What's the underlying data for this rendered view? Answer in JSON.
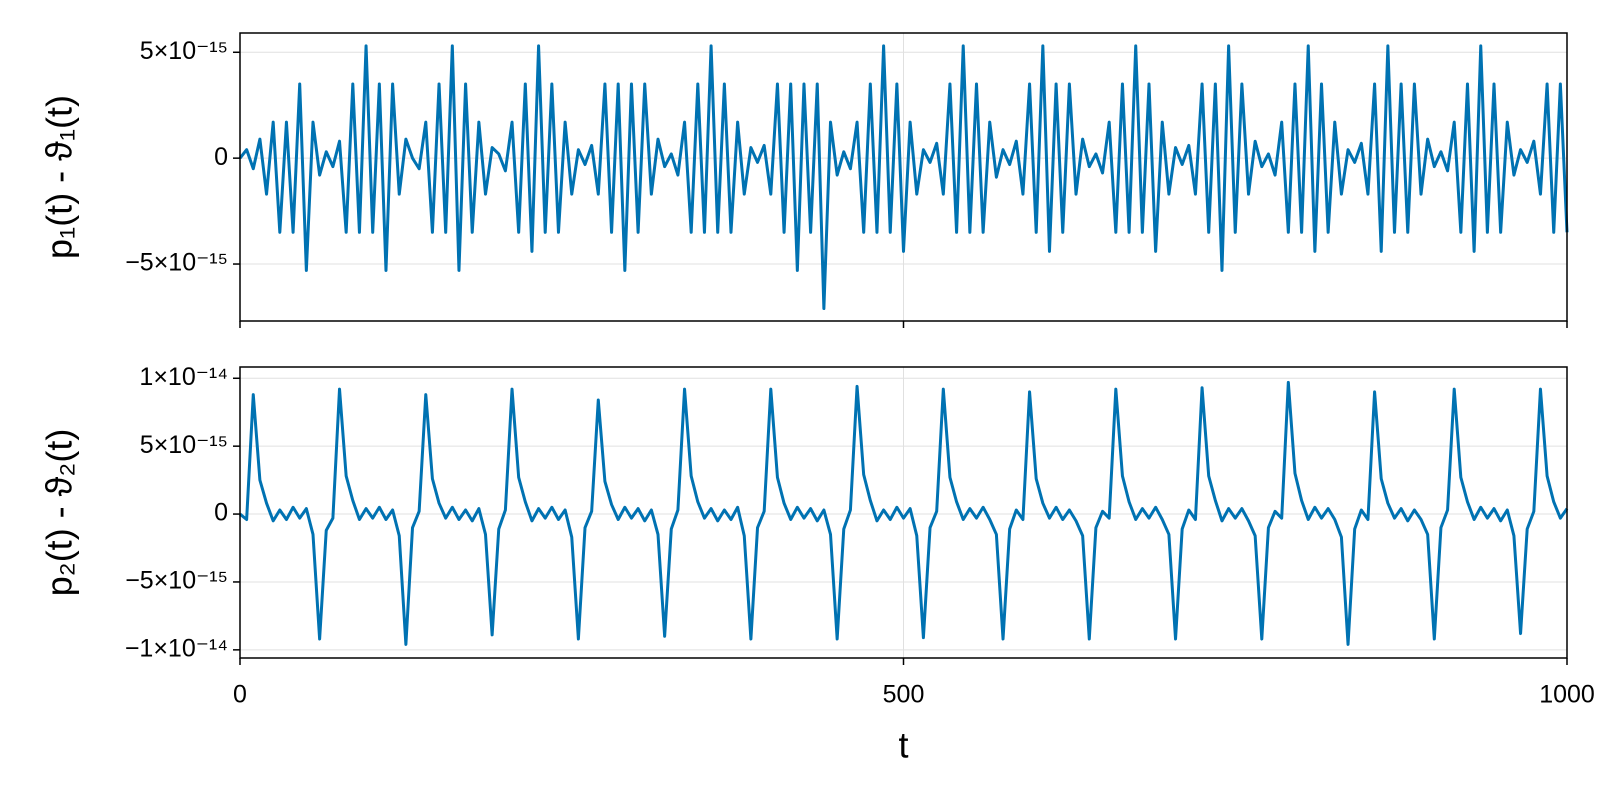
{
  "chart_data": [
    {
      "type": "line",
      "ylabel": "p₁(t) - ϑ₁(t)",
      "x": [
        0,
        5,
        10,
        15,
        20,
        25,
        30,
        35,
        40,
        45,
        50,
        55,
        60,
        65,
        70,
        75,
        80,
        85,
        90,
        95,
        100,
        105,
        110,
        115,
        120,
        125,
        130,
        135,
        140,
        145,
        150,
        155,
        160,
        165,
        170,
        175,
        180,
        185,
        190,
        195,
        200,
        205,
        210,
        215,
        220,
        225,
        230,
        235,
        240,
        245,
        250,
        255,
        260,
        265,
        270,
        275,
        280,
        285,
        290,
        295,
        300,
        305,
        310,
        315,
        320,
        325,
        330,
        335,
        340,
        345,
        350,
        355,
        360,
        365,
        370,
        375,
        380,
        385,
        390,
        395,
        400,
        405,
        410,
        415,
        420,
        425,
        430,
        435,
        440,
        445,
        450,
        455,
        460,
        465,
        470,
        475,
        480,
        485,
        490,
        495,
        500,
        505,
        510,
        515,
        520,
        525,
        530,
        535,
        540,
        545,
        550,
        555,
        560,
        565,
        570,
        575,
        580,
        585,
        590,
        595,
        600,
        605,
        610,
        615,
        620,
        625,
        630,
        635,
        640,
        645,
        650,
        655,
        660,
        665,
        670,
        675,
        680,
        685,
        690,
        695,
        700,
        705,
        710,
        715,
        720,
        725,
        730,
        735,
        740,
        745,
        750,
        755,
        760,
        765,
        770,
        775,
        780,
        785,
        790,
        795,
        800,
        805,
        810,
        815,
        820,
        825,
        830,
        835,
        840,
        845,
        850,
        855,
        860,
        865,
        870,
        875,
        880,
        885,
        890,
        895,
        900,
        905,
        910,
        915,
        920,
        925,
        930,
        935,
        940,
        945,
        950,
        955,
        960,
        965,
        970,
        975,
        980,
        985,
        990,
        995,
        1000
      ],
      "series": [
        {
          "color": "#0072b2",
          "values": [
            0,
            4e-16,
            -5e-16,
            9e-16,
            -1.7e-15,
            1.7e-15,
            -3.5e-15,
            1.7e-15,
            -3.5e-15,
            3.5e-15,
            -5.3e-15,
            1.7e-15,
            -8e-16,
            3e-16,
            -4e-16,
            8e-16,
            -3.5e-15,
            3.5e-15,
            -3.5e-15,
            5.3e-15,
            -3.5e-15,
            3.5e-15,
            -5.3e-15,
            3.5e-15,
            -1.7e-15,
            9e-16,
            0,
            -5e-16,
            1.7e-15,
            -3.5e-15,
            3.5e-15,
            -3.5e-15,
            5.3e-15,
            -5.3e-15,
            3.5e-15,
            -3.5e-15,
            1.7e-15,
            -1.7e-15,
            5e-16,
            2e-16,
            -6e-16,
            1.7e-15,
            -3.5e-15,
            3.5e-15,
            -4.4e-15,
            5.3e-15,
            -3.5e-15,
            3.5e-15,
            -3.5e-15,
            1.7e-15,
            -1.7e-15,
            4e-16,
            -3e-16,
            6e-16,
            -1.7e-15,
            3.5e-15,
            -3.5e-15,
            3.5e-15,
            -5.3e-15,
            3.5e-15,
            -3.5e-15,
            3.5e-15,
            -1.7e-15,
            9e-16,
            -4e-16,
            2e-16,
            -8e-16,
            1.7e-15,
            -3.5e-15,
            3.5e-15,
            -3.5e-15,
            5.3e-15,
            -3.5e-15,
            3.5e-15,
            -3.5e-15,
            1.7e-15,
            -1.7e-15,
            5e-16,
            -2e-16,
            6e-16,
            -1.7e-15,
            3.5e-15,
            -3.5e-15,
            3.5e-15,
            -5.3e-15,
            3.5e-15,
            -3.5e-15,
            3.5e-15,
            -7.1e-15,
            1.7e-15,
            -8e-16,
            3e-16,
            -5e-16,
            1.7e-15,
            -3.5e-15,
            3.5e-15,
            -3.5e-15,
            5.3e-15,
            -3.5e-15,
            3.5e-15,
            -4.4e-15,
            1.7e-15,
            -1.7e-15,
            4e-16,
            -2e-16,
            7e-16,
            -1.7e-15,
            3.5e-15,
            -3.5e-15,
            5.3e-15,
            -3.5e-15,
            3.5e-15,
            -3.5e-15,
            1.7e-15,
            -9e-16,
            4e-16,
            -3e-16,
            8e-16,
            -1.7e-15,
            3.5e-15,
            -3.5e-15,
            5.3e-15,
            -4.4e-15,
            3.5e-15,
            -3.5e-15,
            3.5e-15,
            -1.7e-15,
            9e-16,
            -4e-16,
            2e-16,
            -7e-16,
            1.7e-15,
            -3.5e-15,
            3.5e-15,
            -3.5e-15,
            5.3e-15,
            -3.5e-15,
            3.5e-15,
            -4.4e-15,
            1.7e-15,
            -1.7e-15,
            5e-16,
            -3e-16,
            6e-16,
            -1.7e-15,
            3.5e-15,
            -3.5e-15,
            3.5e-15,
            -5.3e-15,
            5.3e-15,
            -3.5e-15,
            3.5e-15,
            -1.7e-15,
            8e-16,
            -4e-16,
            2e-16,
            -8e-16,
            1.7e-15,
            -3.5e-15,
            3.5e-15,
            -3.5e-15,
            5.3e-15,
            -4.4e-15,
            3.5e-15,
            -3.5e-15,
            1.7e-15,
            -1.7e-15,
            4e-16,
            -2e-16,
            7e-16,
            -1.7e-15,
            3.5e-15,
            -4.4e-15,
            5.3e-15,
            -3.5e-15,
            3.5e-15,
            -3.5e-15,
            3.5e-15,
            -1.7e-15,
            9e-16,
            -4e-16,
            3e-16,
            -6e-16,
            1.7e-15,
            -3.5e-15,
            3.5e-15,
            -4.4e-15,
            5.3e-15,
            -3.5e-15,
            3.5e-15,
            -3.5e-15,
            1.7e-15,
            -8e-16,
            4e-16,
            -2e-16,
            8e-16,
            -1.7e-15,
            3.5e-15,
            -3.5e-15,
            3.5e-15,
            -3.5e-15
          ]
        }
      ],
      "xlim": [
        0,
        1000
      ],
      "xticks": [
        0,
        500,
        1000
      ],
      "ylim": [
        -7.69e-15,
        5.91e-15
      ],
      "yticks": [
        {
          "value": 5e-15,
          "label": "5×10⁻¹⁵"
        },
        0,
        {
          "value": -5e-15,
          "label": "−5×10⁻¹⁵"
        }
      ],
      "grid": true
    },
    {
      "type": "line",
      "ylabel": "p₂(t) - ϑ₂(t)",
      "xlabel": "t",
      "x": [
        0,
        5,
        10,
        15,
        20,
        25,
        30,
        35,
        40,
        45,
        50,
        55,
        60,
        65,
        70,
        75,
        80,
        85,
        90,
        95,
        100,
        105,
        110,
        115,
        120,
        125,
        130,
        135,
        140,
        145,
        150,
        155,
        160,
        165,
        170,
        175,
        180,
        185,
        190,
        195,
        200,
        205,
        210,
        215,
        220,
        225,
        230,
        235,
        240,
        245,
        250,
        255,
        260,
        265,
        270,
        275,
        280,
        285,
        290,
        295,
        300,
        305,
        310,
        315,
        320,
        325,
        330,
        335,
        340,
        345,
        350,
        355,
        360,
        365,
        370,
        375,
        380,
        385,
        390,
        395,
        400,
        405,
        410,
        415,
        420,
        425,
        430,
        435,
        440,
        445,
        450,
        455,
        460,
        465,
        470,
        475,
        480,
        485,
        490,
        495,
        500,
        505,
        510,
        515,
        520,
        525,
        530,
        535,
        540,
        545,
        550,
        555,
        560,
        565,
        570,
        575,
        580,
        585,
        590,
        595,
        600,
        605,
        610,
        615,
        620,
        625,
        630,
        635,
        640,
        645,
        650,
        655,
        660,
        665,
        670,
        675,
        680,
        685,
        690,
        695,
        700,
        705,
        710,
        715,
        720,
        725,
        730,
        735,
        740,
        745,
        750,
        755,
        760,
        765,
        770,
        775,
        780,
        785,
        790,
        795,
        800,
        805,
        810,
        815,
        820,
        825,
        830,
        835,
        840,
        845,
        850,
        855,
        860,
        865,
        870,
        875,
        880,
        885,
        890,
        895,
        900,
        905,
        910,
        915,
        920,
        925,
        930,
        935,
        940,
        945,
        950,
        955,
        960,
        965,
        970,
        975,
        980,
        985,
        990,
        995,
        1000
      ],
      "series": [
        {
          "color": "#0072b2",
          "values": [
            0,
            -4e-16,
            8.8e-15,
            2.5e-15,
            8e-16,
            -5e-16,
            3e-16,
            -4e-16,
            5e-16,
            -3e-16,
            4e-16,
            -1.5e-15,
            -9.2e-15,
            -1.2e-15,
            -3e-16,
            9.2e-15,
            2.8e-15,
            1e-15,
            -4e-16,
            4e-16,
            -3e-16,
            5e-16,
            -4e-16,
            3e-16,
            -1.6e-15,
            -9.6e-15,
            -1e-15,
            2e-16,
            8.8e-15,
            2.6e-15,
            8e-16,
            -3e-16,
            5e-16,
            -4e-16,
            3e-16,
            -5e-16,
            4e-16,
            -1.5e-15,
            -8.9e-15,
            -1.1e-15,
            3e-16,
            9.2e-15,
            2.7e-15,
            9e-16,
            -5e-16,
            4e-16,
            -3e-16,
            5e-16,
            -4e-16,
            3e-16,
            -1.7e-15,
            -9.2e-15,
            -1e-15,
            2e-16,
            8.4e-15,
            2.4e-15,
            7e-16,
            -4e-16,
            5e-16,
            -3e-16,
            4e-16,
            -5e-16,
            3e-16,
            -1.5e-15,
            -9e-15,
            -1.1e-15,
            3e-16,
            9.2e-15,
            2.8e-15,
            9e-16,
            -3e-16,
            4e-16,
            -5e-16,
            3e-16,
            -4e-16,
            5e-16,
            -1.6e-15,
            -9.2e-15,
            -1e-15,
            2e-16,
            9.2e-15,
            2.7e-15,
            8e-16,
            -4e-16,
            5e-16,
            -3e-16,
            4e-16,
            -5e-16,
            3e-16,
            -1.5e-15,
            -9.2e-15,
            -1.1e-15,
            3e-16,
            9.4e-15,
            2.9e-15,
            1e-15,
            -5e-16,
            3e-16,
            -4e-16,
            5e-16,
            -3e-16,
            4e-16,
            -1.6e-15,
            -9.1e-15,
            -1e-15,
            2e-16,
            9.2e-15,
            2.7e-15,
            9e-16,
            -4e-16,
            4e-16,
            -3e-16,
            5e-16,
            -4e-16,
            -1.5e-15,
            -9.2e-15,
            -1.1e-15,
            3e-16,
            -4e-16,
            9e-15,
            2.6e-15,
            8e-16,
            -3e-16,
            5e-16,
            -4e-16,
            3e-16,
            -5e-16,
            -1.6e-15,
            -9.2e-15,
            -1e-15,
            2e-16,
            -3e-16,
            9.2e-15,
            2.8e-15,
            9e-16,
            -4e-16,
            4e-16,
            -3e-16,
            5e-16,
            -4e-16,
            -1.5e-15,
            -9.2e-15,
            -1.1e-15,
            3e-16,
            -4e-16,
            9.3e-15,
            2.8e-15,
            1e-15,
            -5e-16,
            4e-16,
            -3e-16,
            4e-16,
            -5e-16,
            -1.6e-15,
            -9.2e-15,
            -1e-15,
            2e-16,
            -3e-16,
            9.7e-15,
            3e-15,
            1e-15,
            -4e-16,
            5e-16,
            -3e-16,
            4e-16,
            -4e-16,
            -1.7e-15,
            -9.6e-15,
            -1.1e-15,
            3e-16,
            -4e-16,
            9e-15,
            2.6e-15,
            8e-16,
            -3e-16,
            4e-16,
            -5e-16,
            3e-16,
            -4e-16,
            -1.5e-15,
            -9.2e-15,
            -1e-15,
            3e-16,
            9.2e-15,
            2.7e-15,
            9e-16,
            -4e-16,
            5e-16,
            -3e-16,
            4e-16,
            -5e-16,
            3e-16,
            -1.6e-15,
            -8.8e-15,
            -1.1e-15,
            2e-16,
            9.2e-15,
            2.8e-15,
            9e-16,
            -3e-16,
            4e-16
          ]
        }
      ],
      "xlim": [
        0,
        1000
      ],
      "xticks": [
        0,
        500,
        1000
      ],
      "ylim": [
        -1.06e-14,
        1.083e-14
      ],
      "yticks": [
        {
          "value": 1e-14,
          "label": "1×10⁻¹⁴"
        },
        {
          "value": 5e-15,
          "label": "5×10⁻¹⁵"
        },
        0,
        {
          "value": -5e-15,
          "label": "−5×10⁻¹⁵"
        },
        {
          "value": -1e-14,
          "label": "−1×10⁻¹⁴"
        }
      ],
      "grid": true
    }
  ]
}
